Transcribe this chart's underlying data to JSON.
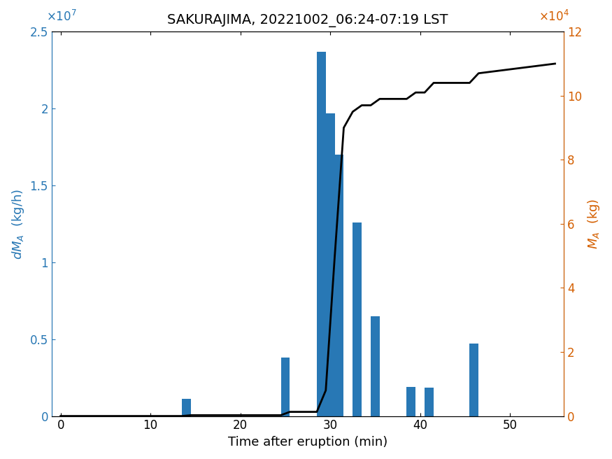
{
  "title": "SAKURAJIMA, 20221002_06:24-07:19 LST",
  "xlabel": "Time after eruption (min)",
  "ylabel_left": "dM_A  (kg/h)",
  "ylabel_right": "M_A  (kg)",
  "bar_centers": [
    14,
    25,
    29,
    30,
    31,
    33,
    35,
    39,
    41,
    46
  ],
  "bar_heights": [
    1100000.0,
    3800000.0,
    23700000.0,
    19700000.0,
    17000000.0,
    12600000.0,
    6500000.0,
    1900000.0,
    1850000.0,
    4700000.0
  ],
  "bar_width": 1.0,
  "bar_color": "#2878b5",
  "line_x": [
    0,
    13.5,
    14.5,
    24.5,
    25.5,
    28.5,
    29.5,
    30.5,
    31.5,
    32.5,
    33.5,
    34.5,
    35.5,
    38.5,
    39.5,
    40.5,
    41.5,
    45.5,
    46.5,
    55
  ],
  "line_y": [
    0,
    0,
    250,
    250,
    1300,
    1300,
    8000,
    50000,
    90000,
    95000,
    97000,
    97000,
    99000,
    99000,
    101000,
    101000,
    104000,
    104000,
    107000,
    110000
  ],
  "line_color": "#000000",
  "xlim": [
    -1,
    56
  ],
  "ylim_left": [
    0,
    25000000.0
  ],
  "ylim_right": [
    0,
    120000
  ],
  "yticks_left": [
    0,
    5000000,
    10000000,
    15000000,
    20000000,
    25000000
  ],
  "yticks_right": [
    0,
    20000,
    40000,
    60000,
    80000,
    100000,
    120000
  ],
  "ytick_labels_left": [
    "0",
    "0.5",
    "1",
    "1.5",
    "2",
    "2.5"
  ],
  "ytick_labels_right": [
    "0",
    "2",
    "4",
    "6",
    "8",
    "10",
    "12"
  ],
  "xticks": [
    0,
    10,
    20,
    30,
    40,
    50
  ],
  "left_axis_color": "#2777b4",
  "right_axis_color": "#d45f00",
  "title_fontsize": 14,
  "label_fontsize": 13,
  "tick_fontsize": 12,
  "background_color": "#ffffff",
  "fig_width": 8.75,
  "fig_height": 6.56,
  "dpi": 100
}
